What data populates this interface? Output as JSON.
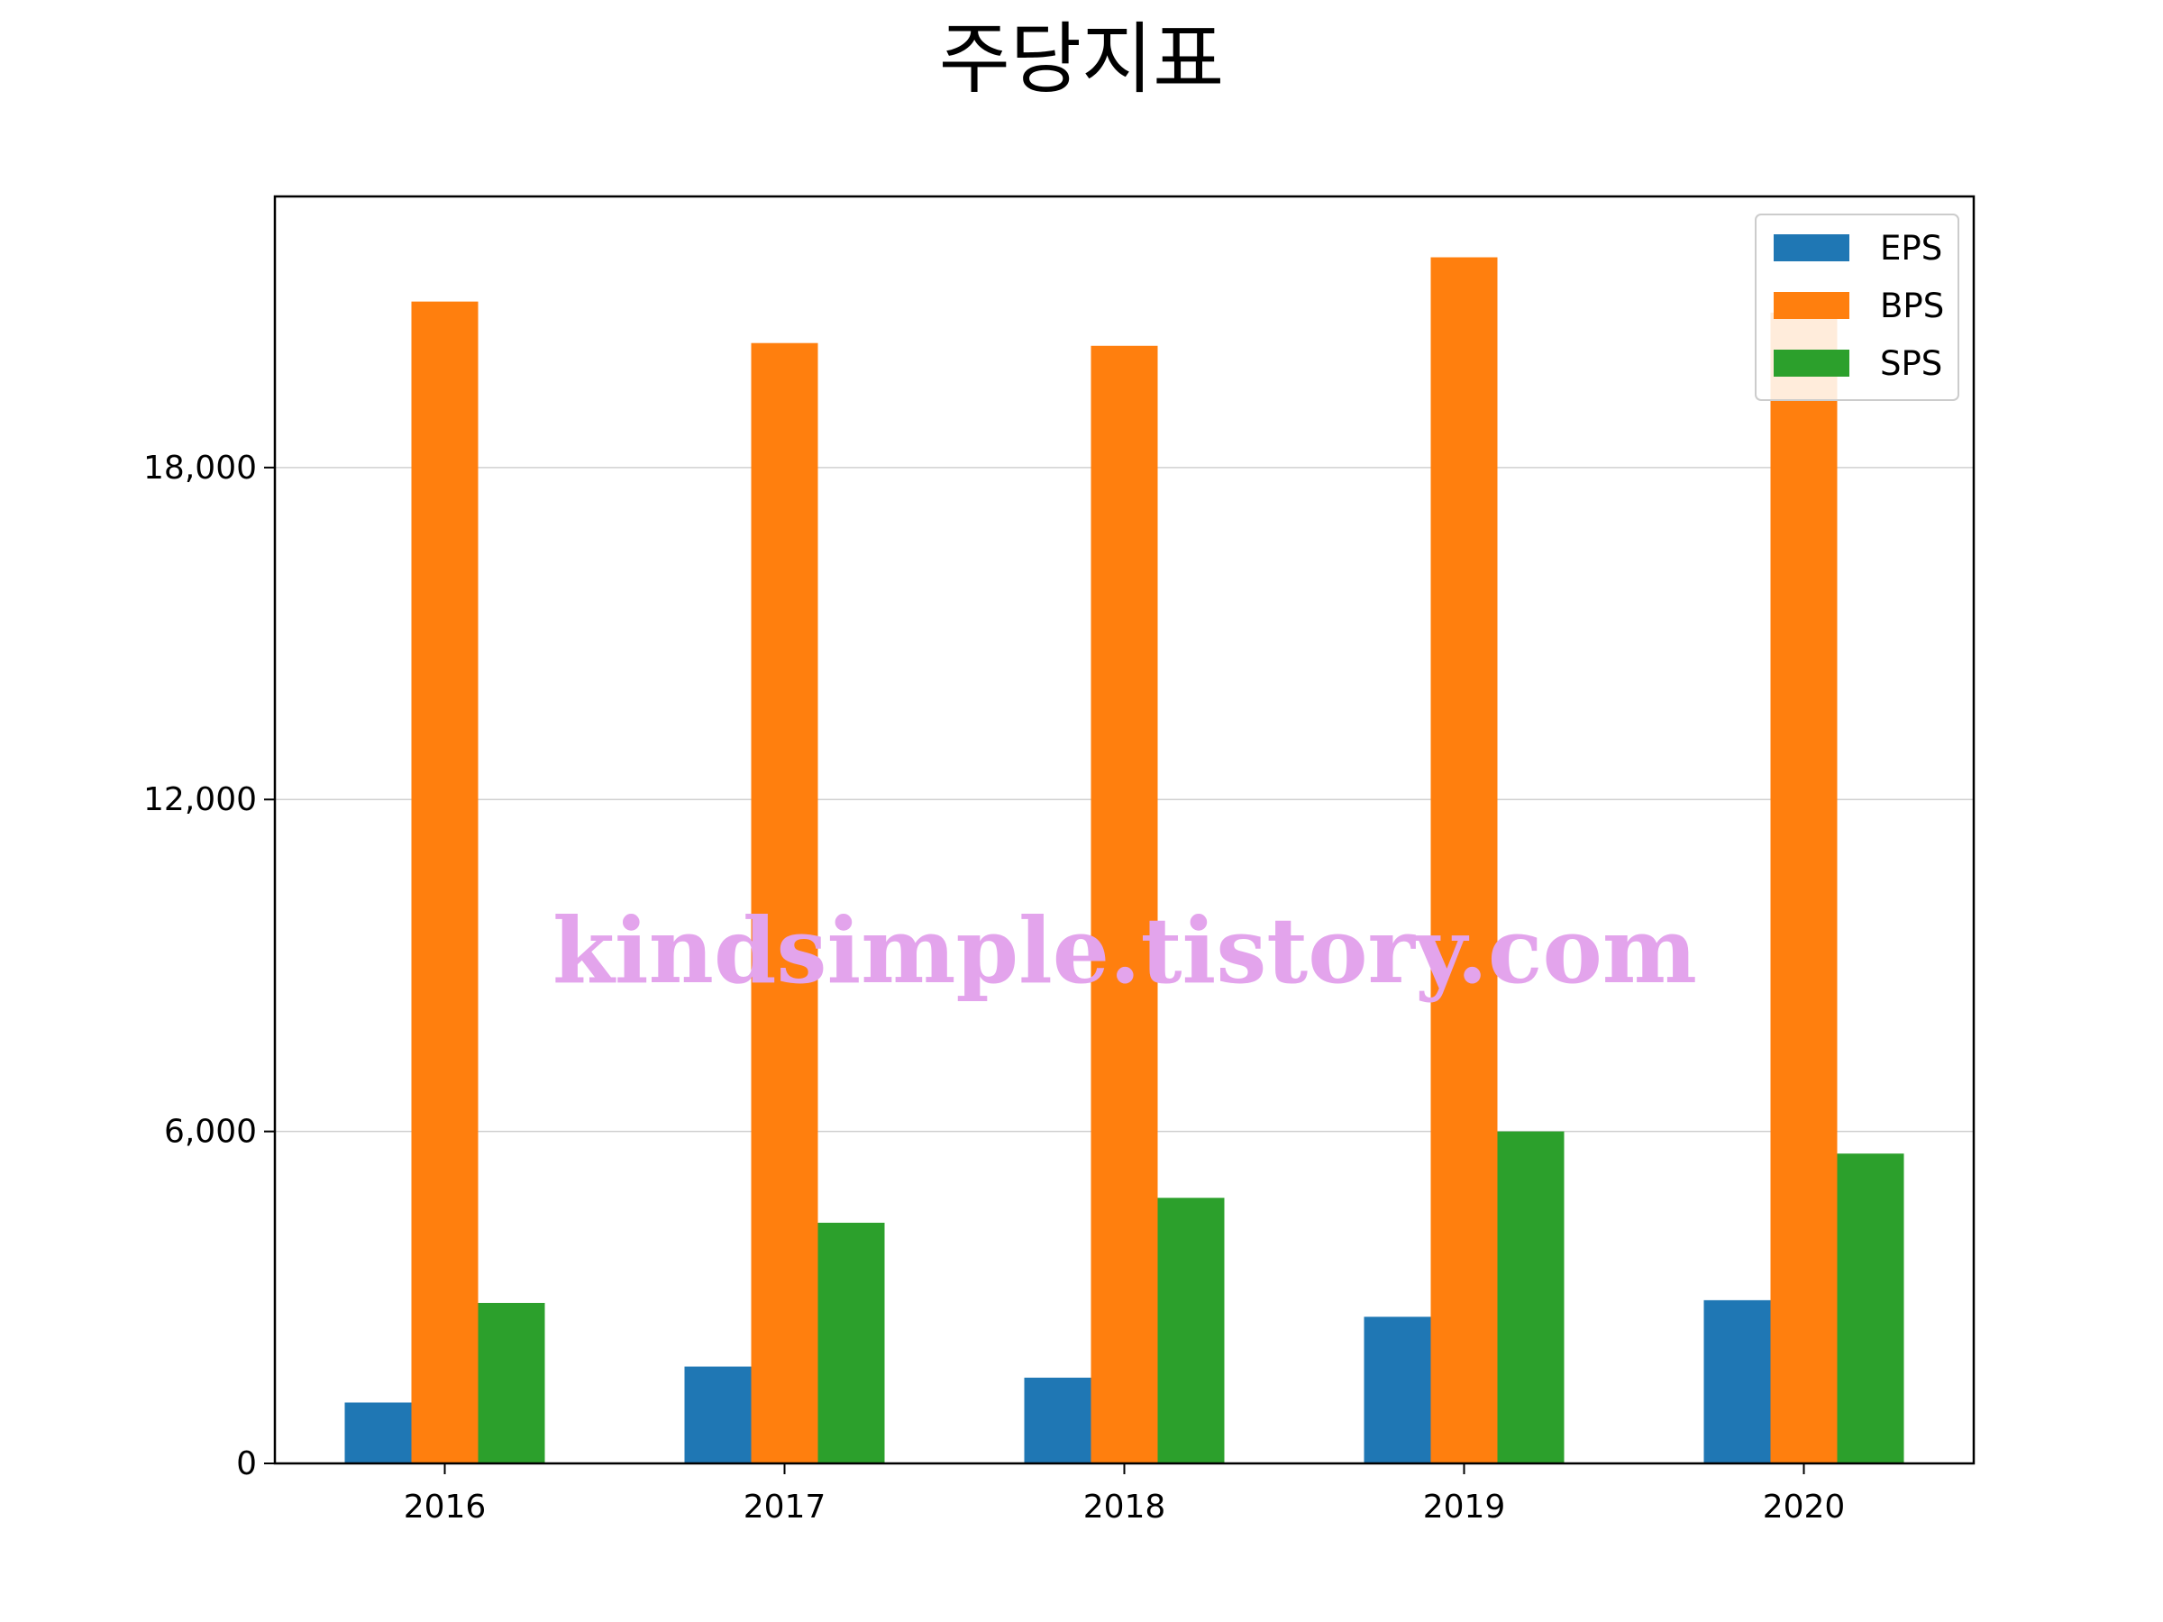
{
  "chart_data": {
    "type": "bar",
    "title": "주당지표",
    "categories": [
      "2016",
      "2017",
      "2018",
      "2019",
      "2020"
    ],
    "series": [
      {
        "name": "EPS",
        "color": "#1f77b4",
        "values": [
          1100,
          1750,
          1550,
          2650,
          2950
        ]
      },
      {
        "name": "BPS",
        "color": "#ff7f0e",
        "values": [
          21000,
          20250,
          20200,
          21800,
          20800
        ]
      },
      {
        "name": "SPS",
        "color": "#2ca02c",
        "values": [
          2900,
          4350,
          4800,
          6000,
          5600
        ]
      }
    ],
    "yticks": [
      0,
      6000,
      12000,
      18000
    ],
    "ytick_labels": [
      "0",
      "6,000",
      "12,000",
      "18,000"
    ],
    "ylim": [
      0,
      22900
    ],
    "grid": "horizontal",
    "legend_position": "top-right",
    "xlabel": "",
    "ylabel": ""
  },
  "watermark": "kindsimple.tistory.com"
}
